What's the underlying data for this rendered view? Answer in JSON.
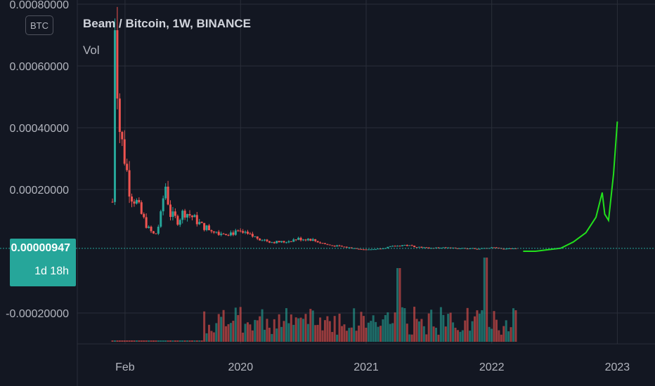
{
  "header": {
    "title": "Beam / Bitcoin, 1W, BINANCE",
    "vol_label": "Vol",
    "currency_badge": "BTC"
  },
  "price_tag": {
    "price": "0.00000947",
    "countdown": "1d 18h"
  },
  "colors": {
    "up": "#26a69a",
    "down": "#ef5350",
    "projection": "#22e01c",
    "grid": "#2a2e39",
    "background": "#131722"
  },
  "chart_data": {
    "type": "line",
    "title": "Beam / Bitcoin, 1W, BINANCE",
    "y_tick_labels": [
      "0.00080000",
      "0.00060000",
      "0.00040000",
      "0.00020000",
      "-0.00020000"
    ],
    "y_ticks": [
      0.0008,
      0.0006,
      0.0004,
      0.0002,
      -0.0002
    ],
    "x_tick_labels": [
      "Feb",
      "2020",
      "2021",
      "2022",
      "2023"
    ],
    "x_ticks": [
      2019.08,
      2020.0,
      2021.0,
      2022.0,
      2023.0
    ],
    "xlim": [
      2018.7,
      2023.3
    ],
    "ylim": [
      -0.00028,
      0.0008
    ],
    "last_price": 9.47e-06,
    "grid": true,
    "series": [
      {
        "name": "BEAM/BTC",
        "x": [
          2018.98,
          2019.0,
          2019.03,
          2019.05,
          2019.08,
          2019.12,
          2019.17,
          2019.22,
          2019.27,
          2019.32,
          2019.36,
          2019.4,
          2019.44,
          2019.5,
          2019.55,
          2019.62,
          2019.7,
          2019.77,
          2019.84,
          2019.92,
          2020.0,
          2020.08,
          2020.16,
          2020.25,
          2020.35,
          2020.45,
          2020.55,
          2020.62,
          2020.7,
          2020.8,
          2020.9,
          2021.0,
          2021.1,
          2021.2,
          2021.3,
          2021.4,
          2021.5,
          2021.6,
          2021.7,
          2021.8,
          2021.9,
          2022.0,
          2022.1,
          2022.2
        ],
        "y": [
          0.00016,
          0.0008,
          0.00042,
          0.00036,
          0.0003,
          0.00019,
          0.00016,
          0.00011,
          7e-05,
          5e-05,
          0.0001,
          0.00022,
          0.00012,
          0.0001,
          0.00013,
          0.00011,
          8e-05,
          7e-05,
          6e-05,
          6e-05,
          6e-05,
          5e-05,
          4e-05,
          3e-05,
          3e-05,
          4e-05,
          4e-05,
          3e-05,
          2e-05,
          1.5e-05,
          1e-05,
          5e-06,
          8e-06,
          1.5e-05,
          2e-05,
          1.5e-05,
          1e-05,
          1.2e-05,
          1e-05,
          1e-05,
          8e-06,
          1.2e-05,
          8e-06,
          9.47e-06
        ]
      },
      {
        "name": "projection",
        "x": [
          2022.25,
          2022.35,
          2022.45,
          2022.55,
          2022.65,
          2022.75,
          2022.83,
          2022.88,
          2022.9,
          2022.93,
          2022.97,
          2023.0
        ],
        "y": [
          0.0,
          0.0,
          5e-06,
          1e-05,
          3e-05,
          6e-05,
          0.00011,
          0.00019,
          0.00012,
          0.0001,
          0.00025,
          0.00042
        ]
      }
    ]
  }
}
